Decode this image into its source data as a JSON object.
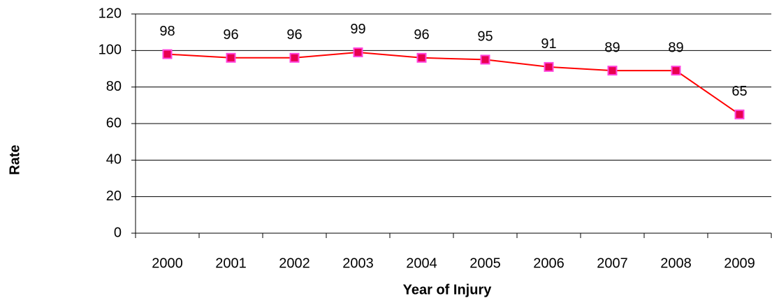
{
  "chart_data": {
    "type": "line",
    "x_label": "Year of Injury",
    "y_label": "Rate",
    "categories": [
      "2000",
      "2001",
      "2002",
      "2003",
      "2004",
      "2005",
      "2006",
      "2007",
      "2008",
      "2009"
    ],
    "series": [
      {
        "color": "#ff0000",
        "marker_fill": "#e8004f",
        "marker_edge": "#ff44dd",
        "values": [
          98,
          96,
          96,
          99,
          96,
          95,
          91,
          89,
          89,
          65
        ]
      }
    ],
    "ylim": [
      0,
      120
    ],
    "yticks": [
      0,
      20,
      40,
      60,
      80,
      100,
      120
    ],
    "grid": true
  }
}
